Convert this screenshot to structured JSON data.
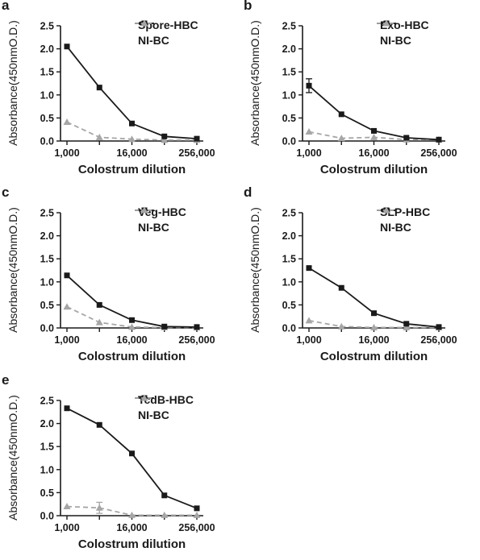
{
  "chart_data": [
    {
      "panel": "a",
      "type": "line",
      "x": [
        1000,
        4000,
        16000,
        64000,
        256000
      ],
      "xscale": "log",
      "xticks": [
        "1,000",
        "16,000",
        "256,000"
      ],
      "xlabel": "Colostrum dilution",
      "ylabel": "Absorbance(450nmO.D.)",
      "ylim": [
        0,
        2.5
      ],
      "yticks": [
        "0.0",
        "0.5",
        "1.0",
        "1.5",
        "2.0",
        "2.5"
      ],
      "legend_position": "top-right",
      "series": [
        {
          "name": "Spore-HBC",
          "values": [
            2.05,
            1.16,
            0.38,
            0.1,
            0.05
          ],
          "errors": [
            0,
            0,
            0,
            0,
            0
          ],
          "color": "#1a1a1a",
          "style": "solid",
          "marker": "square"
        },
        {
          "name": "NI-BC",
          "values": [
            0.41,
            0.08,
            0.04,
            0.02,
            0.02
          ],
          "errors": [
            0,
            0,
            0,
            0,
            0
          ],
          "color": "#a6a6a6",
          "style": "dashed",
          "marker": "triangle"
        }
      ]
    },
    {
      "panel": "b",
      "type": "line",
      "x": [
        1000,
        4000,
        16000,
        64000,
        256000
      ],
      "xscale": "log",
      "xticks": [
        "1,000",
        "16,000",
        "256,000"
      ],
      "xlabel": "Colostrum dilution",
      "ylabel": "Absorbance(450nmO.D.)",
      "ylim": [
        0,
        2.5
      ],
      "yticks": [
        "0.0",
        "0.5",
        "1.0",
        "1.5",
        "2.0",
        "2.5"
      ],
      "legend_position": "top-right",
      "series": [
        {
          "name": "Exo-HBC",
          "values": [
            1.2,
            0.58,
            0.22,
            0.07,
            0.03
          ],
          "errors": [
            0.15,
            0,
            0,
            0,
            0
          ],
          "color": "#1a1a1a",
          "style": "solid",
          "marker": "square"
        },
        {
          "name": "NI-BC",
          "values": [
            0.2,
            0.06,
            0.08,
            0.03,
            0.03
          ],
          "errors": [
            0,
            0,
            0,
            0,
            0
          ],
          "color": "#a6a6a6",
          "style": "dashed",
          "marker": "triangle"
        }
      ]
    },
    {
      "panel": "c",
      "type": "line",
      "x": [
        1000,
        4000,
        16000,
        64000,
        256000
      ],
      "xscale": "log",
      "xticks": [
        "1,000",
        "16,000",
        "256,000"
      ],
      "xlabel": "Colostrum dilution",
      "ylabel": "Absorbance(450nmO.D.)",
      "ylim": [
        0,
        2.5
      ],
      "yticks": [
        "0.0",
        "0.5",
        "1.0",
        "1.5",
        "2.0",
        "2.5"
      ],
      "legend_position": "top-right",
      "series": [
        {
          "name": "Veg-HBC",
          "values": [
            1.14,
            0.5,
            0.17,
            0.03,
            0.02
          ],
          "errors": [
            0,
            0,
            0,
            0,
            0
          ],
          "color": "#1a1a1a",
          "style": "solid",
          "marker": "square"
        },
        {
          "name": "NI-BC",
          "values": [
            0.46,
            0.12,
            0.02,
            0.01,
            0.01
          ],
          "errors": [
            0,
            0,
            0,
            0,
            0
          ],
          "color": "#a6a6a6",
          "style": "dashed",
          "marker": "triangle"
        }
      ]
    },
    {
      "panel": "d",
      "type": "line",
      "x": [
        1000,
        4000,
        16000,
        64000,
        256000
      ],
      "xscale": "log",
      "xticks": [
        "1,000",
        "16,000",
        "256,000"
      ],
      "xlabel": "Colostrum dilution",
      "ylabel": "Absorbance(450nmO.D.)",
      "ylim": [
        0,
        2.5
      ],
      "yticks": [
        "0.0",
        "0.5",
        "1.0",
        "1.5",
        "2.0",
        "2.5"
      ],
      "legend_position": "top-right",
      "series": [
        {
          "name": "SLP-HBC",
          "values": [
            1.3,
            0.87,
            0.32,
            0.09,
            0.02
          ],
          "errors": [
            0,
            0,
            0,
            0,
            0
          ],
          "color": "#1a1a1a",
          "style": "solid",
          "marker": "square"
        },
        {
          "name": "NI-BC",
          "values": [
            0.16,
            0.03,
            0.01,
            0.01,
            0.01
          ],
          "errors": [
            0,
            0,
            0,
            0,
            0
          ],
          "color": "#a6a6a6",
          "style": "dashed",
          "marker": "triangle"
        }
      ]
    },
    {
      "panel": "e",
      "type": "line",
      "x": [
        1000,
        4000,
        16000,
        64000,
        256000
      ],
      "xscale": "log",
      "xticks": [
        "1,000",
        "16,000",
        "256,000"
      ],
      "xlabel": "Colostrum dilution",
      "ylabel": "Absorbance(450nmO.D.)",
      "ylim": [
        0,
        2.5
      ],
      "yticks": [
        "0.0",
        "0.5",
        "1.0",
        "1.5",
        "2.0",
        "2.5"
      ],
      "legend_position": "top-right",
      "series": [
        {
          "name": "TcdB-HBC",
          "values": [
            2.33,
            1.97,
            1.35,
            0.44,
            0.16
          ],
          "errors": [
            0,
            0,
            0,
            0,
            0
          ],
          "color": "#1a1a1a",
          "style": "solid",
          "marker": "square"
        },
        {
          "name": "NI-BC",
          "values": [
            0.2,
            0.17,
            0.01,
            0.01,
            0.01
          ],
          "errors": [
            0,
            0.12,
            0,
            0,
            0
          ],
          "color": "#a6a6a6",
          "style": "dashed",
          "marker": "triangle"
        }
      ]
    }
  ]
}
